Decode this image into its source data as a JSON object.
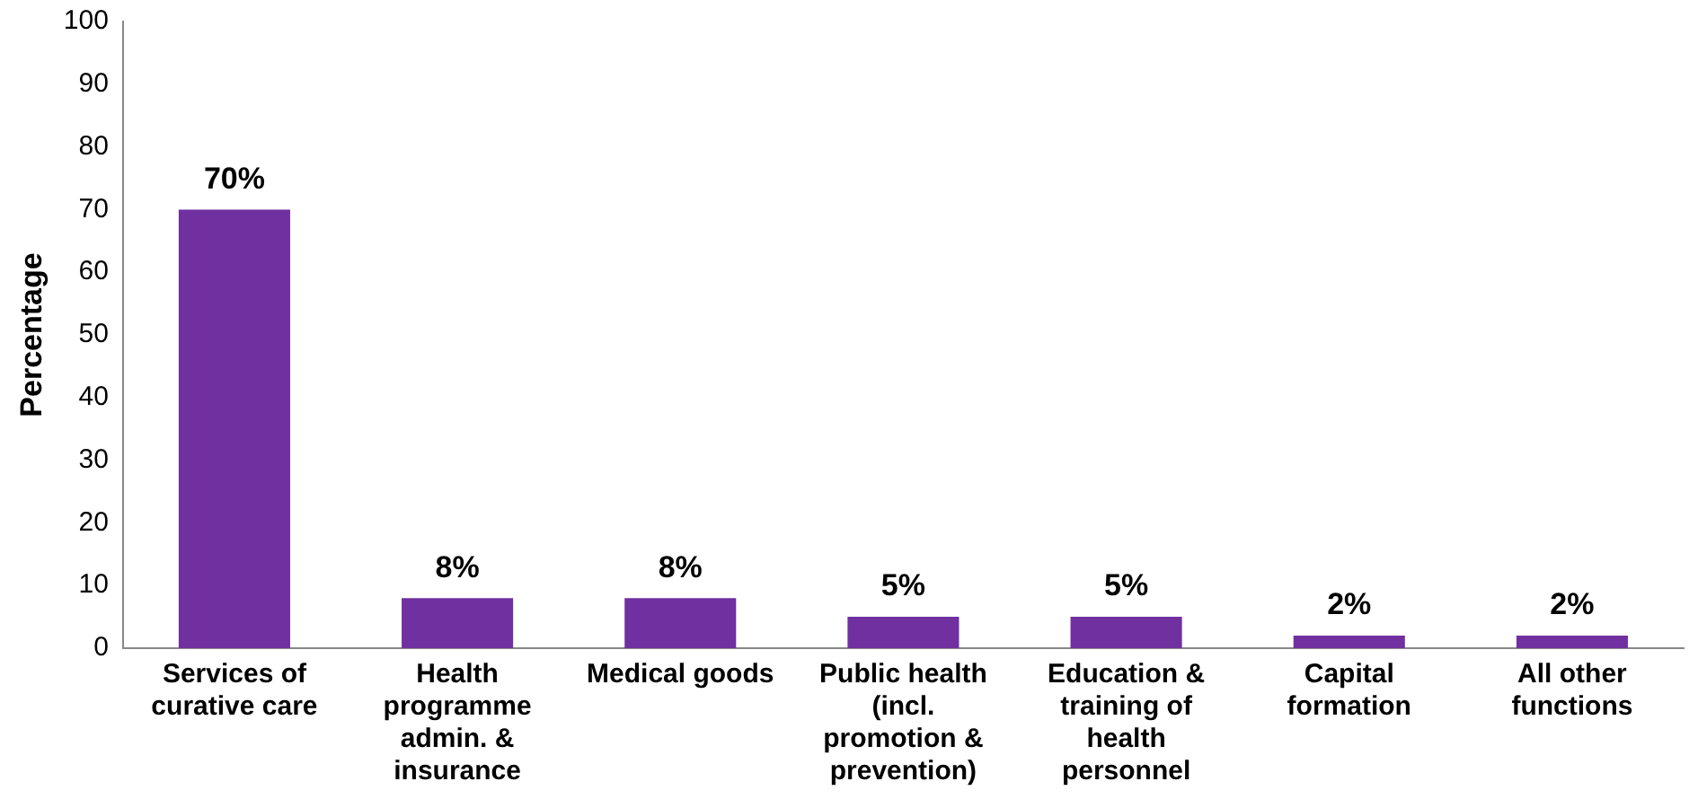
{
  "chart_data": {
    "type": "bar",
    "ylabel": "Percentage",
    "categories": [
      "Services of curative care",
      "Health programme admin. & insurance",
      "Medical goods",
      "Public health (incl. promotion & prevention)",
      "Education & training of health personnel",
      "Capital formation",
      "All other functions"
    ],
    "values": [
      70,
      8,
      8,
      5,
      5,
      2,
      2
    ],
    "value_labels": [
      "70%",
      "8%",
      "8%",
      "5%",
      "5%",
      "2%",
      "2%"
    ],
    "color": "#7030a0",
    "ylim": [
      0,
      100
    ],
    "yticks": [
      0,
      10,
      20,
      30,
      40,
      50,
      60,
      70,
      80,
      90,
      100
    ],
    "grid": false,
    "legend": false
  }
}
